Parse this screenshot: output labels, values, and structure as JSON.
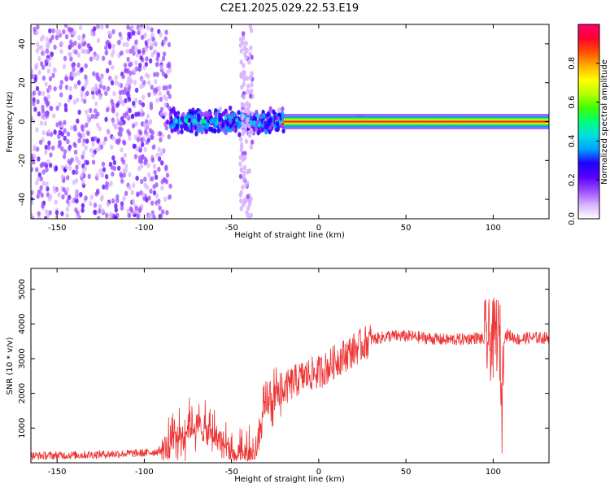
{
  "figure_title": "C2E1.2025.029.22.53.E19",
  "colors": {
    "snr_line": "#ee3333",
    "background": "#ffffff",
    "colormap": [
      "#ffffff",
      "#d8b4ff",
      "#9b4dff",
      "#5a00ff",
      "#1f00ff",
      "#00a0ff",
      "#00e0e0",
      "#00ff7a",
      "#40ff00",
      "#b8ff00",
      "#ffff00",
      "#ffb000",
      "#ff5000",
      "#ff0030",
      "#ff0070"
    ]
  },
  "chart_data": [
    {
      "type": "heatmap",
      "title": "",
      "xlabel": "Height of straight line (km)",
      "ylabel": "Frequency (Hz)",
      "xlim": [
        -165,
        132
      ],
      "ylim": [
        -50,
        50
      ],
      "x_ticks": [
        -150,
        -100,
        -50,
        0,
        50,
        100
      ],
      "x_tick_labels": [
        "-150",
        "-100",
        "-50",
        "0",
        "50",
        "100"
      ],
      "y_ticks": [
        -40,
        -20,
        0,
        20,
        40
      ],
      "y_tick_labels": [
        "-40",
        "-20",
        "0",
        "20",
        "40"
      ],
      "colorbar": {
        "label": "Normalized spectral amplitude",
        "range": [
          0,
          1
        ],
        "ticks": [
          0,
          0.2,
          0.4,
          0.6,
          0.8
        ],
        "tick_labels": [
          "0.0",
          "0.2",
          "0.4",
          "0.6",
          "0.8"
        ]
      },
      "regions": [
        {
          "x_range": [
            -165,
            -85
          ],
          "freq_range": [
            -50,
            50
          ],
          "amplitude_range": [
            0.05,
            0.2
          ],
          "pattern": "scattered"
        },
        {
          "x_range": [
            -85,
            -20
          ],
          "freq_range": [
            -8,
            8
          ],
          "amplitude_range": [
            0.15,
            0.5
          ],
          "pattern": "band"
        },
        {
          "x_range": [
            -20,
            132
          ],
          "freq_range": [
            -3,
            3
          ],
          "amplitude_range": [
            0.5,
            1.0
          ],
          "pattern": "narrow band centered at 0 Hz"
        },
        {
          "x_range": [
            -45,
            -38
          ],
          "freq_range": [
            -50,
            50
          ],
          "amplitude_range": [
            0.05,
            0.12
          ],
          "pattern": "faint vertical streak"
        }
      ]
    },
    {
      "type": "line",
      "title": "",
      "xlabel": "Height of straight line (km)",
      "ylabel": "SNR (10 * v/v)",
      "xlim": [
        -165,
        132
      ],
      "ylim": [
        0,
        5600
      ],
      "x_ticks": [
        -150,
        -100,
        -50,
        0,
        50,
        100
      ],
      "x_tick_labels": [
        "-150",
        "-100",
        "-50",
        "0",
        "50",
        "100"
      ],
      "y_ticks": [
        1000,
        2000,
        3000,
        4000,
        5000
      ],
      "y_tick_labels": [
        "1000",
        "2000",
        "3000",
        "4000",
        "5000"
      ],
      "series": [
        {
          "x": [
            -165,
            -140,
            -120,
            -100,
            -92,
            -85,
            -80,
            -75,
            -70,
            -65,
            -60,
            -55,
            -50,
            -45,
            -40,
            -35,
            -32,
            -30,
            -28,
            -25,
            -20,
            -15,
            -10,
            -5,
            0,
            5,
            10,
            15,
            20,
            25,
            30,
            40,
            50,
            60,
            70,
            80,
            90,
            95,
            100,
            102,
            104,
            105,
            106,
            108,
            110,
            115,
            120,
            132
          ],
          "y": [
            200,
            220,
            250,
            280,
            330,
            500,
            750,
            1000,
            1100,
            900,
            800,
            600,
            300,
            150,
            200,
            350,
            1300,
            1600,
            1750,
            1900,
            2100,
            2300,
            2450,
            2550,
            2600,
            2750,
            2950,
            3100,
            3250,
            3400,
            3550,
            3650,
            3650,
            3600,
            3550,
            3550,
            3600,
            3550,
            3500,
            3800,
            3400,
            1300,
            3600,
            3700,
            3650,
            3550,
            3600,
            3600
          ],
          "noise_amplitude": 250
        }
      ]
    }
  ]
}
